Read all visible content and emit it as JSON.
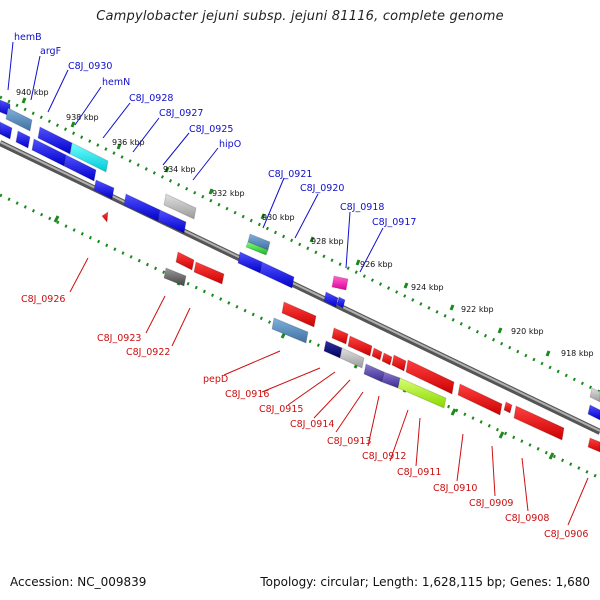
{
  "title": "Campylobacter jejuni subsp. jejuni 81116, complete genome",
  "footer": {
    "accession": "Accession: NC_009839",
    "info": "Topology: circular; Length: 1,628,115 bp; Genes: 1,680"
  },
  "colors": {
    "forward_label": "#1010cc",
    "reverse_label": "#cc1010",
    "backbone": "#8a8a8a",
    "tick": "#1a8a1a"
  },
  "ticks": [
    "940 kbp",
    "938 kbp",
    "936 kbp",
    "934 kbp",
    "932 kbp",
    "930 kbp",
    "928 kbp",
    "926 kbp",
    "924 kbp",
    "922 kbp",
    "920 kbp",
    "918 kbp"
  ],
  "forward_labels": [
    "hemB",
    "argF",
    "C8J_0930",
    "hemN",
    "C8J_0928",
    "C8J_0927",
    "C8J_0925",
    "hipO",
    "C8J_0921",
    "C8J_0920",
    "C8J_0918",
    "C8J_0917"
  ],
  "reverse_labels": [
    "C8J_0926",
    "C8J_0923",
    "C8J_0922",
    "pepD",
    "C8J_0916",
    "C8J_0915",
    "C8J_0914",
    "C8J_0913",
    "C8J_0912",
    "C8J_0911",
    "C8J_0910",
    "C8J_0909",
    "C8J_0908",
    "C8J_0906"
  ]
}
